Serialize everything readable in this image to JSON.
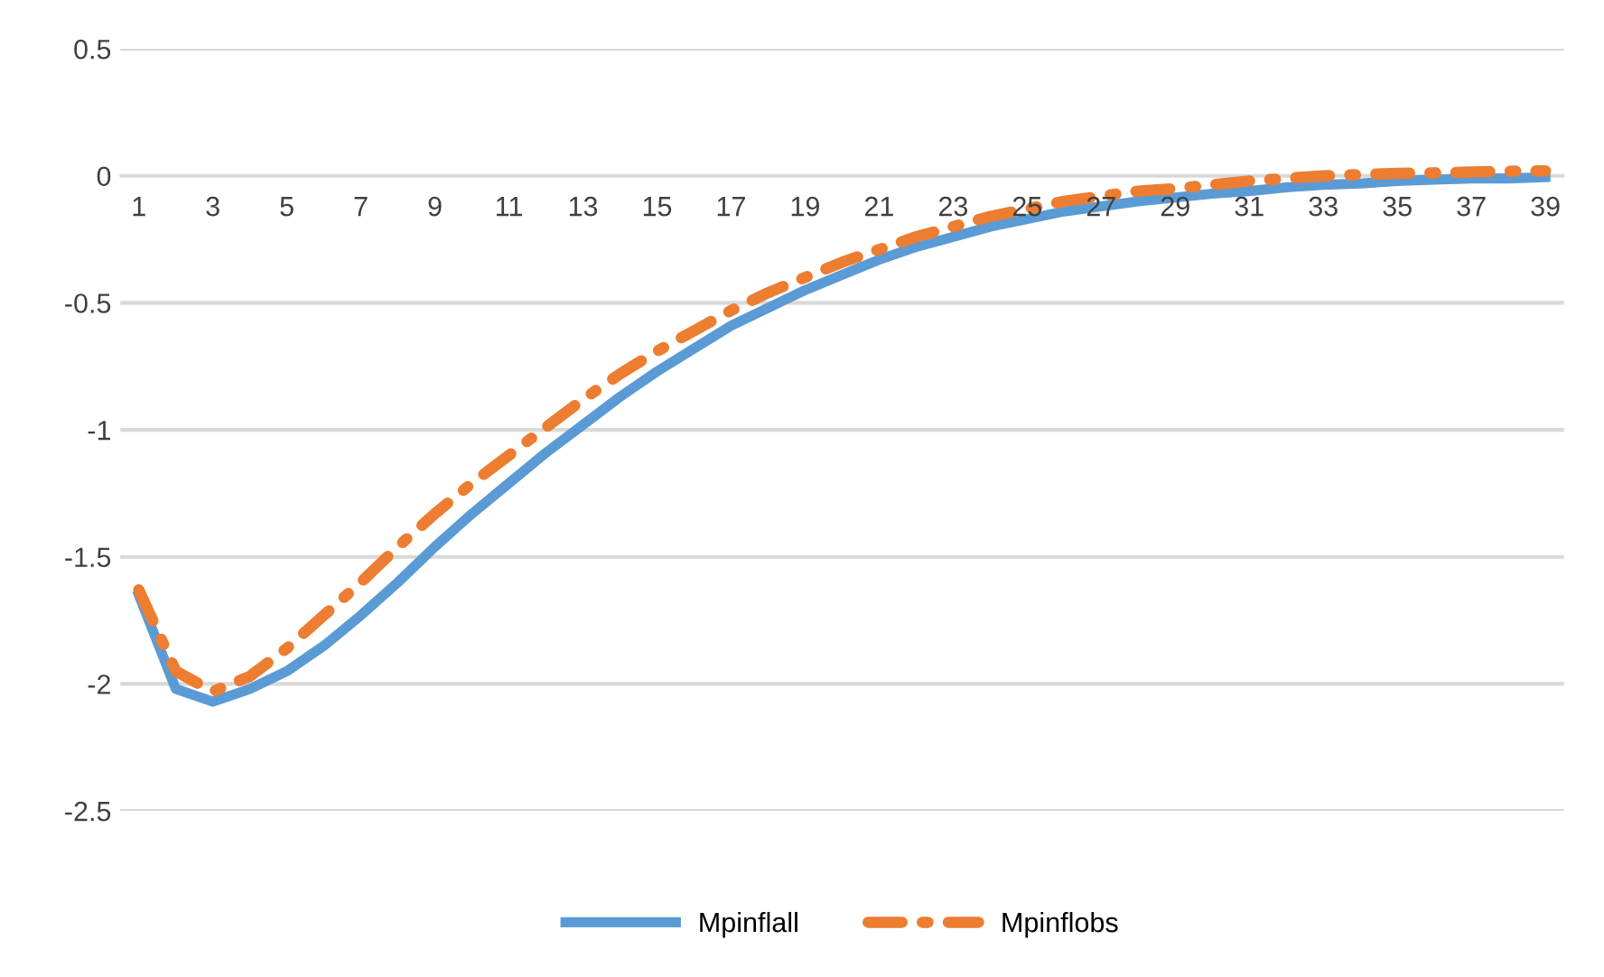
{
  "chart_data": {
    "type": "line",
    "categories": [
      "1",
      null,
      "3",
      null,
      "5",
      null,
      "7",
      null,
      "9",
      null,
      "11",
      null,
      "13",
      null,
      "15",
      null,
      "17",
      null,
      "19",
      null,
      "21",
      null,
      "23",
      null,
      "25",
      null,
      "27",
      null,
      "29",
      null,
      "31",
      null,
      "33",
      null,
      "35",
      null,
      "37",
      null,
      "39"
    ],
    "series": [
      {
        "name": "Mpinflall",
        "color": "#5b9bd5",
        "line_style": "solid",
        "values": [
          -1.65,
          -2.02,
          -2.07,
          -2.02,
          -1.95,
          -1.85,
          -1.73,
          -1.6,
          -1.46,
          -1.33,
          -1.21,
          -1.09,
          -0.98,
          -0.87,
          -0.77,
          -0.68,
          -0.59,
          -0.52,
          -0.45,
          -0.39,
          -0.33,
          -0.28,
          -0.24,
          -0.2,
          -0.17,
          -0.14,
          -0.12,
          -0.1,
          -0.085,
          -0.07,
          -0.06,
          -0.045,
          -0.035,
          -0.03,
          -0.02,
          -0.015,
          -0.01,
          -0.01,
          -0.005
        ]
      },
      {
        "name": "Mpinflobs",
        "color": "#ed7d31",
        "line_style": "dashdot",
        "values": [
          -1.63,
          -1.95,
          -2.03,
          -1.97,
          -1.86,
          -1.73,
          -1.6,
          -1.46,
          -1.33,
          -1.21,
          -1.1,
          -0.99,
          -0.88,
          -0.78,
          -0.69,
          -0.61,
          -0.53,
          -0.46,
          -0.4,
          -0.34,
          -0.29,
          -0.24,
          -0.2,
          -0.16,
          -0.13,
          -0.1,
          -0.08,
          -0.06,
          -0.05,
          -0.035,
          -0.02,
          -0.01,
          0,
          0.005,
          0.01,
          0.012,
          0.015,
          0.018,
          0.02
        ]
      }
    ],
    "ylim": [
      -2.5,
      0.5
    ],
    "yticks": [
      0.5,
      0,
      -0.5,
      -1,
      -1.5,
      -2,
      -2.5
    ],
    "grid": "y",
    "legend": "bottom"
  }
}
